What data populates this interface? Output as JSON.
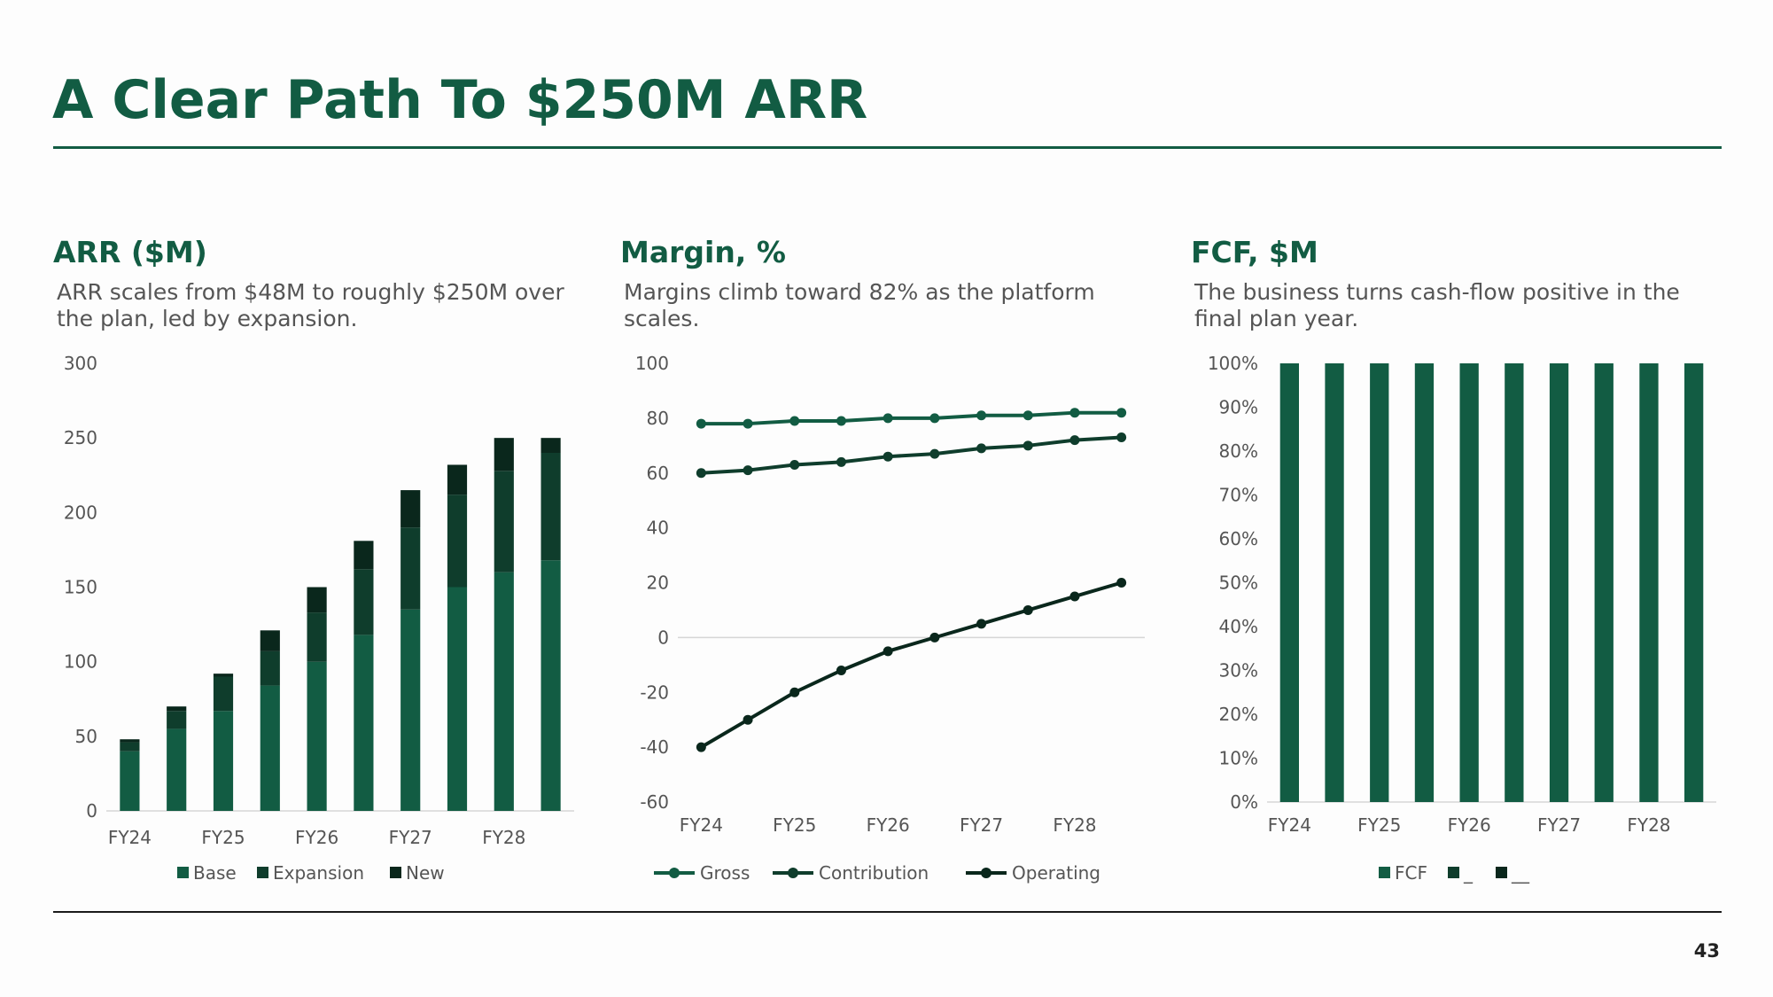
{
  "slide": {
    "title": "A Clear Path To $250M ARR",
    "page_number": "43"
  },
  "colors": {
    "brand": "#125c43",
    "mid": "#0f3d2c",
    "dark": "#0a271c",
    "text": "#555555"
  },
  "panels": [
    {
      "title": "ARR ($M)",
      "description": "ARR scales from $48M to roughly $250M over the plan, led by expansion."
    },
    {
      "title": "Margin, %",
      "description": "Margins climb toward 82% as the platform scales."
    },
    {
      "title": "FCF, $M",
      "description": "The business turns cash-flow positive in the final plan year."
    }
  ],
  "chart_data": [
    {
      "type": "bar",
      "stacked": true,
      "x_tick_labels": [
        "FY24",
        "FY25",
        "FY26",
        "FY27",
        "FY28"
      ],
      "categories": [
        "1",
        "2",
        "3",
        "4",
        "5",
        "6",
        "7",
        "8",
        "9",
        "10"
      ],
      "series": [
        {
          "name": "Base",
          "color": "#125c43",
          "values": [
            40,
            55,
            67,
            84,
            100,
            118,
            135,
            150,
            160,
            168
          ]
        },
        {
          "name": "Expansion",
          "color": "#0f3d2c",
          "values": [
            6,
            12,
            23,
            23,
            33,
            44,
            55,
            62,
            68,
            72
          ]
        },
        {
          "name": "New",
          "color": "#0a271c",
          "values": [
            2,
            3,
            2,
            14,
            17,
            19,
            25,
            20,
            22,
            10
          ]
        }
      ],
      "ylim": [
        0,
        300
      ],
      "yticks": [
        "0",
        "50",
        "100",
        "150",
        "200",
        "250",
        "300"
      ],
      "legend": "bottom"
    },
    {
      "type": "line",
      "x_tick_labels": [
        "FY24",
        "FY25",
        "FY26",
        "FY27",
        "FY28"
      ],
      "categories": [
        "1",
        "2",
        "3",
        "4",
        "5",
        "6",
        "7",
        "8",
        "9",
        "10"
      ],
      "series": [
        {
          "name": "Gross",
          "color": "#125c43",
          "values": [
            78,
            78,
            79,
            79,
            80,
            80,
            81,
            81,
            82,
            82
          ]
        },
        {
          "name": "Contribution",
          "color": "#0f3d2c",
          "values": [
            60,
            61,
            63,
            64,
            66,
            67,
            69,
            70,
            72,
            73
          ]
        },
        {
          "name": "Operating",
          "color": "#0a271c",
          "values": [
            -40,
            -30,
            -20,
            -12,
            -5,
            0,
            5,
            10,
            15,
            20
          ]
        }
      ],
      "ylim": [
        -60,
        100
      ],
      "yticks": [
        "-60",
        "-40",
        "-20",
        "0",
        "20",
        "40",
        "60",
        "80",
        "100"
      ],
      "legend": "bottom"
    },
    {
      "type": "bar",
      "stacked": true,
      "percent_axis": true,
      "x_tick_labels": [
        "FY24",
        "FY25",
        "FY26",
        "FY27",
        "FY28"
      ],
      "categories": [
        "1",
        "2",
        "3",
        "4",
        "5",
        "6",
        "7",
        "8",
        "9",
        "10"
      ],
      "series": [
        {
          "name": "FCF",
          "color": "#125c43",
          "values": [
            100,
            100,
            100,
            100,
            100,
            100,
            100,
            100,
            100,
            100
          ]
        },
        {
          "name": "_",
          "color": "#0f3d2c",
          "values": [
            0,
            0,
            0,
            0,
            0,
            0,
            0,
            0,
            0,
            0
          ]
        },
        {
          "name": "__",
          "color": "#0a271c",
          "values": [
            0,
            0,
            0,
            0,
            0,
            0,
            0,
            0,
            0,
            0
          ]
        }
      ],
      "ylim": [
        0,
        100
      ],
      "yticks": [
        "0%",
        "10%",
        "20%",
        "30%",
        "40%",
        "50%",
        "60%",
        "70%",
        "80%",
        "90%",
        "100%"
      ],
      "legend": "bottom"
    }
  ]
}
